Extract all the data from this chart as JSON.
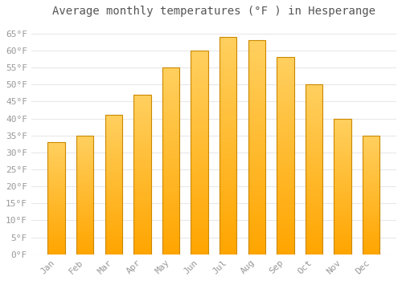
{
  "title": "Average monthly temperatures (°F ) in Hesperange",
  "months": [
    "Jan",
    "Feb",
    "Mar",
    "Apr",
    "May",
    "Jun",
    "Jul",
    "Aug",
    "Sep",
    "Oct",
    "Nov",
    "Dec"
  ],
  "values": [
    33,
    35,
    41,
    47,
    55,
    60,
    64,
    63,
    58,
    50,
    40,
    35
  ],
  "bar_color_top": "#FFD060",
  "bar_color_bottom": "#FFA500",
  "bar_edge_color": "#CC8800",
  "figure_bg": "#FFFFFF",
  "plot_bg": "#FFFFFF",
  "grid_color": "#E8E8E8",
  "ylim": [
    0,
    68
  ],
  "yticks": [
    0,
    5,
    10,
    15,
    20,
    25,
    30,
    35,
    40,
    45,
    50,
    55,
    60,
    65
  ],
  "title_fontsize": 10,
  "tick_fontsize": 8,
  "tick_color": "#999999",
  "title_color": "#555555",
  "bar_width": 0.6
}
